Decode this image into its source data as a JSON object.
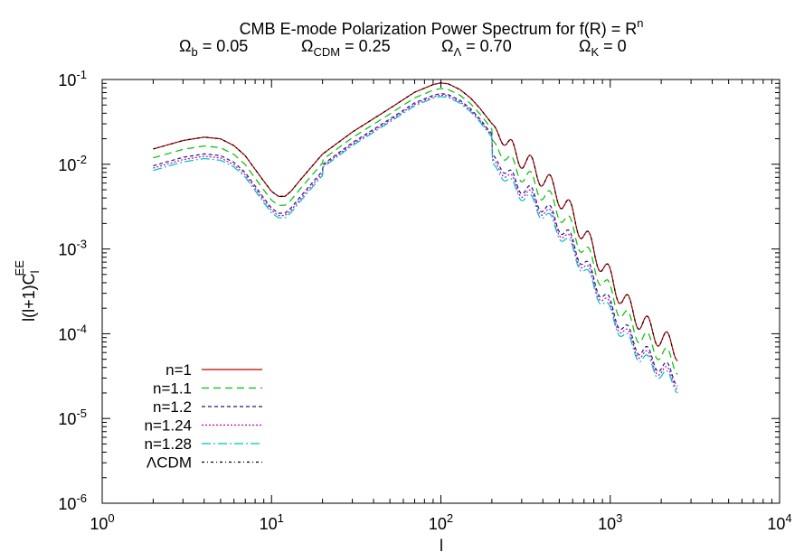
{
  "chart_data": {
    "type": "line",
    "title": {
      "line1_main": "CMB E-mode Polarization Power Spectrum for f(R) = R",
      "line1_sup": "n",
      "params": [
        {
          "sym": "Ω",
          "sub": "b",
          "rest": " = 0.05"
        },
        {
          "sym": "Ω",
          "sub": "CDM",
          "rest": " = 0.25"
        },
        {
          "sym": "Ω",
          "sub": "Λ",
          "rest": " = 0.70"
        },
        {
          "sym": "Ω",
          "sub": "K",
          "rest": " = 0"
        }
      ]
    },
    "xlabel": "l",
    "ylabel": {
      "main": "l(l+1)C",
      "sub": "l",
      "sup": "EE"
    },
    "x_scale": "log",
    "y_scale": "log",
    "xlim": [
      1,
      10000
    ],
    "ylim": [
      1e-06,
      0.1
    ],
    "x_ticks": [
      {
        "base": "10",
        "exp": "0"
      },
      {
        "base": "10",
        "exp": "1"
      },
      {
        "base": "10",
        "exp": "2"
      },
      {
        "base": "10",
        "exp": "3"
      },
      {
        "base": "10",
        "exp": "4"
      }
    ],
    "y_ticks": [
      {
        "base": "10",
        "exp": "-6"
      },
      {
        "base": "10",
        "exp": "-5"
      },
      {
        "base": "10",
        "exp": "-4"
      },
      {
        "base": "10",
        "exp": "-3"
      },
      {
        "base": "10",
        "exp": "-2"
      },
      {
        "base": "10",
        "exp": "-1"
      }
    ],
    "grid": false,
    "legend_position": "bottom-left",
    "series": [
      {
        "name": "n=1",
        "color": "#c00000",
        "dash": "solid",
        "shift": 0.0,
        "ripple": 0.25
      },
      {
        "name": "n=1.1",
        "color": "#00c000",
        "dash": "8,5",
        "shift": -0.19,
        "ripple": 0.22
      },
      {
        "name": "n=1.2",
        "color": "#1a1a80",
        "dash": "4,3",
        "shift": -0.36,
        "ripple": 0.19
      },
      {
        "name": "n=1.24",
        "color": "#c000c0",
        "dash": "2,2",
        "shift": -0.41,
        "ripple": 0.18
      },
      {
        "name": "n=1.28",
        "color": "#00c0c0",
        "dash": "10,3,2,3",
        "shift": -0.46,
        "ripple": 0.17
      },
      {
        "name": "ΛCDM",
        "color": "#000000",
        "dash": "3,3,1,3",
        "shift": 0.0,
        "ripple": 0.25
      }
    ],
    "base_curve_log10": [
      [
        2,
        -1.82
      ],
      [
        3,
        -1.72
      ],
      [
        4,
        -1.68
      ],
      [
        5,
        -1.7
      ],
      [
        6,
        -1.78
      ],
      [
        7,
        -1.9
      ],
      [
        8,
        -2.06
      ],
      [
        9,
        -2.2
      ],
      [
        10,
        -2.32
      ],
      [
        11,
        -2.38
      ],
      [
        12,
        -2.38
      ],
      [
        13,
        -2.32
      ],
      [
        15,
        -2.17
      ],
      [
        20,
        -1.88
      ],
      [
        30,
        -1.62
      ],
      [
        50,
        -1.34
      ],
      [
        70,
        -1.15
      ],
      [
        90,
        -1.06
      ],
      [
        100,
        -1.04
      ],
      [
        110,
        -1.05
      ],
      [
        130,
        -1.12
      ],
      [
        150,
        -1.22
      ],
      [
        170,
        -1.34
      ],
      [
        200,
        -1.52
      ],
      [
        240,
        -1.66
      ],
      [
        300,
        -1.8
      ],
      [
        400,
        -2.03
      ],
      [
        500,
        -2.25
      ],
      [
        600,
        -2.48
      ],
      [
        700,
        -2.7
      ],
      [
        800,
        -2.9
      ],
      [
        1000,
        -3.22
      ],
      [
        1200,
        -3.48
      ],
      [
        1500,
        -3.72
      ],
      [
        2000,
        -3.93
      ],
      [
        2500,
        -4.07
      ]
    ],
    "ripple_range": [
      200,
      2500
    ],
    "ripple_period_log10": 0.115
  }
}
